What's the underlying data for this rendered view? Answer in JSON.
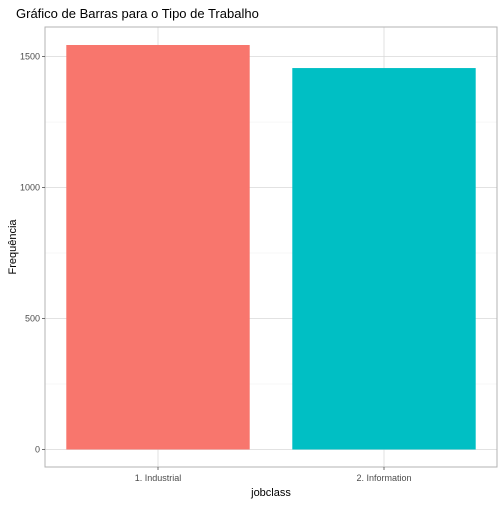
{
  "chart_data": {
    "type": "bar",
    "title": "Gráfico de Barras para o Tipo de Trabalho",
    "xlabel": "jobclass",
    "ylabel": "Frequência",
    "categories": [
      "1. Industrial",
      "2. Information"
    ],
    "values": [
      1544,
      1456
    ],
    "colors": [
      "#F8766D",
      "#00BFC4"
    ],
    "ylim": [
      0,
      1620
    ],
    "yticks": [
      0,
      500,
      1000,
      1500
    ],
    "grid": true,
    "legend": "none"
  }
}
